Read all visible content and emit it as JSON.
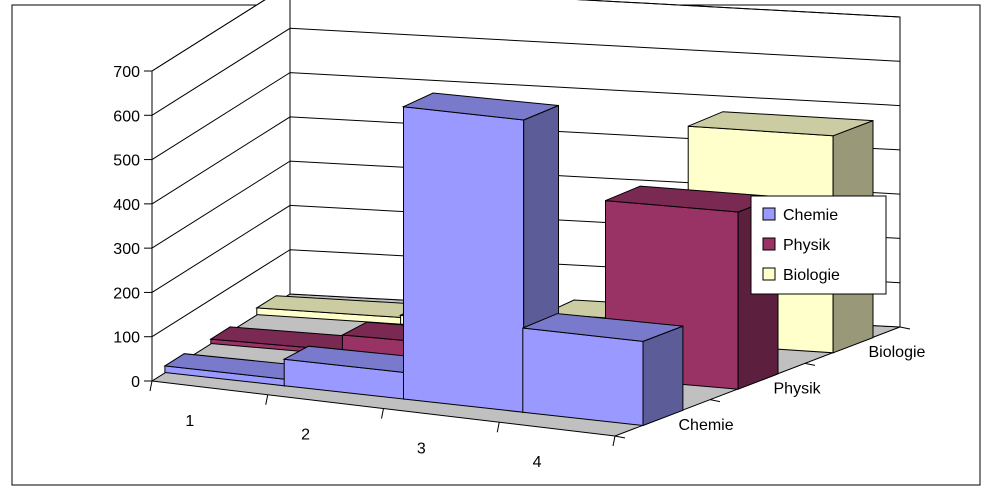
{
  "chart_data": {
    "type": "bar",
    "title": "",
    "xlabel": "",
    "ylabel": "",
    "categories": [
      "1",
      "2",
      "3",
      "4"
    ],
    "y_ticks": [
      "0",
      "100",
      "200",
      "300",
      "400",
      "500",
      "600",
      "700"
    ],
    "ylim": [
      0,
      700
    ],
    "grid": true,
    "legend_position": "right",
    "series": [
      {
        "name": "Chemie",
        "color": "#9999ff",
        "values": [
          15,
          60,
          660,
          190
        ]
      },
      {
        "name": "Physik",
        "color": "#993366",
        "values": [
          10,
          45,
          75,
          400
        ]
      },
      {
        "name": "Biologie",
        "color": "#ffffcc",
        "values": [
          15,
          20,
          45,
          490
        ]
      }
    ],
    "depth_labels": [
      "Biologie",
      "Physik",
      "Chemie"
    ]
  }
}
